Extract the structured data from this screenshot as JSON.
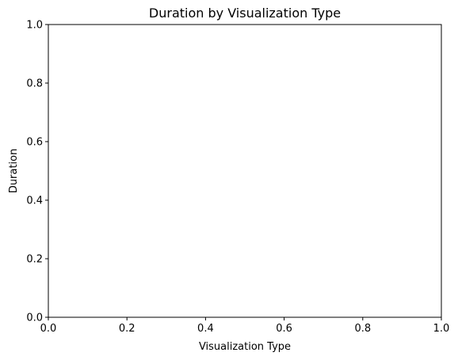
{
  "chart_data": {
    "type": "bar",
    "title": "Duration by Visualization Type",
    "xlabel": "Visualization Type",
    "ylabel": "Duration",
    "xlim": [
      0.0,
      1.0
    ],
    "ylim": [
      0.0,
      1.0
    ],
    "x_ticks": [
      "0.0",
      "0.2",
      "0.4",
      "0.6",
      "0.8",
      "1.0"
    ],
    "y_ticks": [
      "0.0",
      "0.2",
      "0.4",
      "0.6",
      "0.8",
      "1.0"
    ],
    "categories": [],
    "values": [],
    "grid": false,
    "legend": "none"
  }
}
